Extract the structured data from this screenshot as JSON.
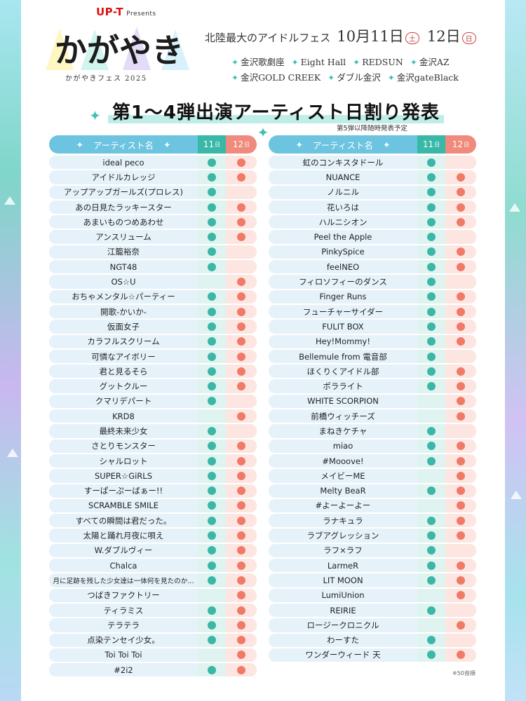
{
  "header": {
    "presenter": "UP-T",
    "presenter_suffix": "Presents",
    "logo_text": "かがやき",
    "logo_sub": "かがやきフェス 2025",
    "fest_lead": "北陸最大のアイドルフェス",
    "date1": "10月11日",
    "dow1": "土",
    "date2": "12日",
    "dow2": "日",
    "venues": [
      "金沢歌劇座",
      "Eight Hall",
      "REDSUN",
      "金沢AZ",
      "金沢GOLD CREEK",
      "ダブル金沢",
      "金沢gateBlack"
    ]
  },
  "headline": "第1〜4弾出演アーティスト日割り発表",
  "subnote": "第5弾以降随時発表予定",
  "table_headers": {
    "name": "アーティスト名",
    "day1": "11",
    "day2": "12",
    "day_suffix": "日"
  },
  "colors": {
    "day11": "#3cb6a6",
    "day12": "#f07a68",
    "header": "#6cc4e0"
  },
  "left_table": [
    {
      "name": "ideal peco",
      "d11": true,
      "d12": true
    },
    {
      "name": "アイドルカレッジ",
      "d11": true,
      "d12": true
    },
    {
      "name": "アップアップガールズ(プロレス)",
      "d11": true,
      "d12": false
    },
    {
      "name": "あの日見たラッキースター",
      "d11": true,
      "d12": true
    },
    {
      "name": "あまいものつめあわせ",
      "d11": true,
      "d12": true
    },
    {
      "name": "アンスリューム",
      "d11": true,
      "d12": true
    },
    {
      "name": "江籠裕奈",
      "d11": true,
      "d12": false
    },
    {
      "name": "NGT48",
      "d11": true,
      "d12": false
    },
    {
      "name": "OS☆U",
      "d11": false,
      "d12": true
    },
    {
      "name": "おちゃメンタル☆パーティー",
      "d11": true,
      "d12": true
    },
    {
      "name": "開歌-かいか-",
      "d11": true,
      "d12": true
    },
    {
      "name": "仮面女子",
      "d11": true,
      "d12": true
    },
    {
      "name": "カラフルスクリーム",
      "d11": true,
      "d12": true
    },
    {
      "name": "可憐なアイボリー",
      "d11": true,
      "d12": true
    },
    {
      "name": "君と見るそら",
      "d11": true,
      "d12": true
    },
    {
      "name": "グットクルー",
      "d11": true,
      "d12": true
    },
    {
      "name": "クマリデパート",
      "d11": true,
      "d12": false
    },
    {
      "name": "KRD8",
      "d11": false,
      "d12": true
    },
    {
      "name": "最終未来少女",
      "d11": true,
      "d12": false
    },
    {
      "name": "さとりモンスター",
      "d11": true,
      "d12": true
    },
    {
      "name": "シャルロット",
      "d11": true,
      "d12": true
    },
    {
      "name": "SUPER☆GiRLS",
      "d11": true,
      "d12": true
    },
    {
      "name": "すーぱーぷーばぁー!!",
      "d11": true,
      "d12": true
    },
    {
      "name": "SCRAMBLE SMILE",
      "d11": true,
      "d12": true
    },
    {
      "name": "すべての瞬間は君だった。",
      "d11": true,
      "d12": true
    },
    {
      "name": "太陽と踊れ月夜に唄え",
      "d11": true,
      "d12": true
    },
    {
      "name": "W.ダブルヴィー",
      "d11": true,
      "d12": true
    },
    {
      "name": "Chalca",
      "d11": true,
      "d12": true
    },
    {
      "name": "月に足跡を残した少女達は一体何を見たのか...",
      "d11": true,
      "d12": true,
      "small": true
    },
    {
      "name": "つばきファクトリー",
      "d11": false,
      "d12": true
    },
    {
      "name": "ティラミス",
      "d11": true,
      "d12": true
    },
    {
      "name": "テラテラ",
      "d11": true,
      "d12": true
    },
    {
      "name": "点染テンセイ少女。",
      "d11": true,
      "d12": true
    },
    {
      "name": "Toi Toi Toi",
      "d11": false,
      "d12": true
    },
    {
      "name": "#2i2",
      "d11": true,
      "d12": true
    }
  ],
  "right_table": [
    {
      "name": "虹のコンキスタドール",
      "d11": true,
      "d12": false
    },
    {
      "name": "NUANCE",
      "d11": true,
      "d12": true
    },
    {
      "name": "ノルニル",
      "d11": true,
      "d12": true
    },
    {
      "name": "花いろは",
      "d11": true,
      "d12": true
    },
    {
      "name": "ハルニシオン",
      "d11": true,
      "d12": true
    },
    {
      "name": "Peel the Apple",
      "d11": true,
      "d12": false
    },
    {
      "name": "PinkySpice",
      "d11": true,
      "d12": true
    },
    {
      "name": "feelNEO",
      "d11": true,
      "d12": true
    },
    {
      "name": "フィロソフィーのダンス",
      "d11": true,
      "d12": false
    },
    {
      "name": "Finger Runs",
      "d11": true,
      "d12": true
    },
    {
      "name": "フューチャーサイダー",
      "d11": true,
      "d12": true
    },
    {
      "name": "FULIT BOX",
      "d11": true,
      "d12": true
    },
    {
      "name": "Hey!Mommy!",
      "d11": true,
      "d12": true
    },
    {
      "name": "Bellemule from 電音部",
      "d11": true,
      "d12": false
    },
    {
      "name": "ほくりくアイドル部",
      "d11": true,
      "d12": true
    },
    {
      "name": "ポラライト",
      "d11": true,
      "d12": true
    },
    {
      "name": "WHITE SCORPION",
      "d11": false,
      "d12": true
    },
    {
      "name": "前橋ウィッチーズ",
      "d11": false,
      "d12": true
    },
    {
      "name": "まねきケチャ",
      "d11": true,
      "d12": false
    },
    {
      "name": "miao",
      "d11": true,
      "d12": true
    },
    {
      "name": "#Mooove!",
      "d11": true,
      "d12": true
    },
    {
      "name": "メイビーME",
      "d11": false,
      "d12": true
    },
    {
      "name": "Melty BeaR",
      "d11": true,
      "d12": true
    },
    {
      "name": "#よーよーよー",
      "d11": false,
      "d12": true
    },
    {
      "name": "ラナキュラ",
      "d11": true,
      "d12": true
    },
    {
      "name": "ラブアグレッション",
      "d11": true,
      "d12": true
    },
    {
      "name": "ラフ×ラフ",
      "d11": true,
      "d12": false
    },
    {
      "name": "LarmeR",
      "d11": true,
      "d12": true
    },
    {
      "name": "LIT MOON",
      "d11": true,
      "d12": true
    },
    {
      "name": "LumiUnion",
      "d11": false,
      "d12": true
    },
    {
      "name": "REIRIE",
      "d11": true,
      "d12": false
    },
    {
      "name": "ロージークロニクル",
      "d11": false,
      "d12": true
    },
    {
      "name": "わーすた",
      "d11": true,
      "d12": false
    },
    {
      "name": "ワンダーウィード 天",
      "d11": true,
      "d12": true
    }
  ],
  "footnote": "※50音順"
}
